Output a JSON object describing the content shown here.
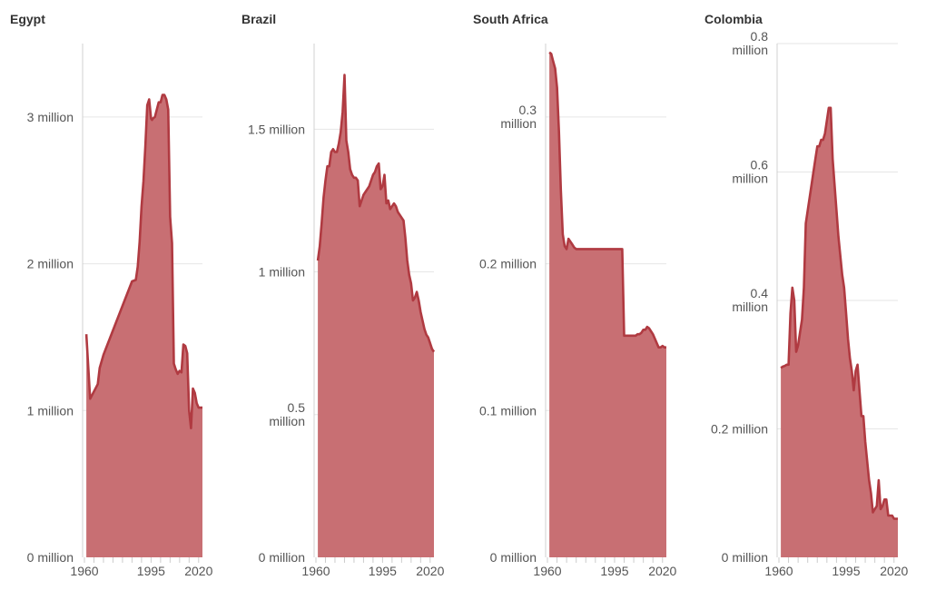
{
  "colors": {
    "line": "#b03a41",
    "fill": "#c86f73",
    "grid": "#e6e6e6",
    "text": "#555555"
  },
  "chart_data": [
    {
      "type": "area",
      "title": "Egypt",
      "xlim": [
        1960,
        2022
      ],
      "ylim": [
        0,
        3500000
      ],
      "x_ticks": [
        {
          "value": 1960,
          "label": "1960"
        },
        {
          "value": 1995,
          "label": "1995"
        },
        {
          "value": 2020,
          "label": "2020"
        }
      ],
      "y_ticks": [
        {
          "value": 0,
          "label": "0 million"
        },
        {
          "value": 1000000,
          "label": "1 million"
        },
        {
          "value": 2000000,
          "label": "2 million"
        },
        {
          "value": 3000000,
          "label": "3 million"
        }
      ],
      "x": [
        1961,
        1962,
        1963,
        1967,
        1968,
        1970,
        1985,
        1987,
        1988,
        1989,
        1990,
        1991,
        1992,
        1993,
        1994,
        1995,
        1995.5,
        1996,
        1997,
        1999,
        2000,
        2001,
        2002,
        2003,
        2004,
        2005,
        2006,
        2007,
        2008,
        2009,
        2010,
        2011,
        2012,
        2013,
        2014,
        2015,
        2016,
        2017,
        2018,
        2019,
        2020,
        2021,
        2022
      ],
      "values": [
        1520000,
        1300000,
        1080000,
        1180000,
        1290000,
        1380000,
        1880000,
        1890000,
        1980000,
        2150000,
        2390000,
        2560000,
        2800000,
        3080000,
        3120000,
        2990000,
        2980000,
        2990000,
        3000000,
        3100000,
        3100000,
        3150000,
        3150000,
        3120000,
        3050000,
        2320000,
        2140000,
        1320000,
        1280000,
        1250000,
        1270000,
        1260000,
        1450000,
        1440000,
        1390000,
        1000000,
        880000,
        1150000,
        1120000,
        1050000,
        1020000,
        1020000,
        1020000
      ]
    },
    {
      "type": "area",
      "title": "Brazil",
      "xlim": [
        1960,
        2022
      ],
      "ylim": [
        0,
        1800000
      ],
      "x_ticks": [
        {
          "value": 1960,
          "label": "1960"
        },
        {
          "value": 1995,
          "label": "1995"
        },
        {
          "value": 2020,
          "label": "2020"
        }
      ],
      "y_ticks": [
        {
          "value": 0,
          "label": "0 million"
        },
        {
          "value": 500000,
          "label": "0.5 million"
        },
        {
          "value": 1000000,
          "label": "1 million"
        },
        {
          "value": 1500000,
          "label": "1.5 million"
        }
      ],
      "x": [
        1961,
        1962,
        1963,
        1964,
        1965,
        1966,
        1967,
        1968,
        1969,
        1970,
        1971,
        1972,
        1973,
        1974,
        1975,
        1976,
        1977,
        1978,
        1979,
        1980,
        1981,
        1982,
        1983,
        1984,
        1985,
        1986,
        1987,
        1988,
        1989,
        1990,
        1991,
        1992,
        1993,
        1994,
        1995,
        1996,
        1997,
        1998,
        1999,
        2000,
        2001,
        2002,
        2003,
        2004,
        2005,
        2006,
        2007,
        2008,
        2009,
        2010,
        2011,
        2012,
        2013,
        2014,
        2015,
        2016,
        2017,
        2018,
        2019,
        2020,
        2021,
        2022
      ],
      "values": [
        1040000,
        1090000,
        1170000,
        1260000,
        1320000,
        1370000,
        1370000,
        1420000,
        1430000,
        1420000,
        1420000,
        1450000,
        1490000,
        1560000,
        1690000,
        1460000,
        1420000,
        1360000,
        1340000,
        1330000,
        1330000,
        1320000,
        1230000,
        1250000,
        1270000,
        1280000,
        1290000,
        1300000,
        1320000,
        1340000,
        1350000,
        1370000,
        1380000,
        1290000,
        1300000,
        1340000,
        1240000,
        1250000,
        1220000,
        1230000,
        1240000,
        1230000,
        1210000,
        1200000,
        1190000,
        1180000,
        1120000,
        1040000,
        990000,
        960000,
        900000,
        910000,
        930000,
        900000,
        860000,
        830000,
        800000,
        780000,
        770000,
        750000,
        730000,
        720000
      ]
    },
    {
      "type": "area",
      "title": "South Africa",
      "xlim": [
        1960,
        2022
      ],
      "ylim": [
        0,
        0.35
      ],
      "x_ticks": [
        {
          "value": 1960,
          "label": "1960"
        },
        {
          "value": 1995,
          "label": "1995"
        },
        {
          "value": 2020,
          "label": "2020"
        }
      ],
      "y_ticks": [
        {
          "value": 0,
          "label": "0 million"
        },
        {
          "value": 0.1,
          "label": "0.1 million"
        },
        {
          "value": 0.2,
          "label": "0.2 million"
        },
        {
          "value": 0.3,
          "label": "0.3 million"
        }
      ],
      "x": [
        1961,
        1962,
        1963,
        1964,
        1965,
        1966,
        1967,
        1968,
        1969,
        1970,
        1971,
        1972,
        1973,
        1974,
        1975,
        1980,
        1985,
        1990,
        1995,
        1998,
        1999,
        2000,
        2001,
        2002,
        2003,
        2004,
        2005,
        2006,
        2007,
        2008,
        2009,
        2010,
        2011,
        2012,
        2013,
        2014,
        2015,
        2016,
        2017,
        2018,
        2019,
        2020,
        2021,
        2022
      ],
      "values": [
        0.344,
        0.343,
        0.338,
        0.333,
        0.32,
        0.29,
        0.25,
        0.22,
        0.212,
        0.21,
        0.217,
        0.215,
        0.213,
        0.211,
        0.21,
        0.21,
        0.21,
        0.21,
        0.21,
        0.21,
        0.21,
        0.151,
        0.151,
        0.151,
        0.151,
        0.151,
        0.151,
        0.151,
        0.152,
        0.152,
        0.153,
        0.155,
        0.155,
        0.157,
        0.156,
        0.154,
        0.152,
        0.149,
        0.146,
        0.143,
        0.143,
        0.144,
        0.143,
        0.143
      ]
    },
    {
      "type": "area",
      "title": "Colombia",
      "xlim": [
        1960,
        2022
      ],
      "ylim": [
        0,
        0.8
      ],
      "x_ticks": [
        {
          "value": 1960,
          "label": "1960"
        },
        {
          "value": 1995,
          "label": "1995"
        },
        {
          "value": 2020,
          "label": "2020"
        }
      ],
      "y_ticks": [
        {
          "value": 0,
          "label": "0 million"
        },
        {
          "value": 0.2,
          "label": "0.2 million"
        },
        {
          "value": 0.4,
          "label": "0.4 million"
        },
        {
          "value": 0.6,
          "label": "0.6 million"
        },
        {
          "value": 0.8,
          "label": "0.8 million"
        }
      ],
      "x": [
        1961,
        1962,
        1963,
        1964,
        1965,
        1966,
        1967,
        1968,
        1969,
        1970,
        1971,
        1972,
        1973,
        1974,
        1975,
        1976,
        1977,
        1978,
        1979,
        1980,
        1981,
        1982,
        1983,
        1984,
        1985,
        1986,
        1987,
        1988,
        1989,
        1990,
        1991,
        1992,
        1993,
        1994,
        1995,
        1996,
        1997,
        1998,
        1999,
        2000,
        2001,
        2002,
        2003,
        2004,
        2005,
        2006,
        2007,
        2008,
        2009,
        2010,
        2011,
        2012,
        2013,
        2014,
        2015,
        2016,
        2017,
        2018,
        2019,
        2020,
        2021,
        2022
      ],
      "values": [
        0.295,
        0.297,
        0.298,
        0.3,
        0.3,
        0.38,
        0.42,
        0.4,
        0.32,
        0.33,
        0.35,
        0.37,
        0.42,
        0.52,
        0.54,
        0.56,
        0.58,
        0.6,
        0.62,
        0.64,
        0.64,
        0.65,
        0.65,
        0.66,
        0.68,
        0.7,
        0.7,
        0.62,
        0.58,
        0.54,
        0.5,
        0.47,
        0.44,
        0.42,
        0.38,
        0.34,
        0.31,
        0.29,
        0.26,
        0.29,
        0.3,
        0.26,
        0.22,
        0.22,
        0.18,
        0.15,
        0.12,
        0.1,
        0.07,
        0.075,
        0.08,
        0.12,
        0.075,
        0.08,
        0.09,
        0.09,
        0.065,
        0.065,
        0.065,
        0.06,
        0.06,
        0.06
      ]
    }
  ]
}
